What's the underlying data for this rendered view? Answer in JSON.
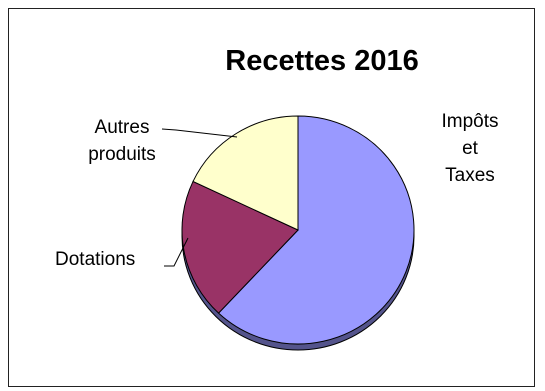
{
  "chart_data": {
    "type": "pie",
    "title": "Recettes 2016",
    "slices": [
      {
        "label": "Impôts et Taxes",
        "label_lines": [
          "Impôts",
          "et",
          "Taxes"
        ],
        "value": 62,
        "color": "#9999ff"
      },
      {
        "label": "Dotations",
        "label_lines": [
          "Dotations"
        ],
        "value": 20,
        "color": "#993366"
      },
      {
        "label": "Autres produits",
        "label_lines": [
          "Autres",
          "produits"
        ],
        "value": 18,
        "color": "#ffffcc"
      }
    ],
    "legend": "none",
    "style": "3d-tilted"
  }
}
